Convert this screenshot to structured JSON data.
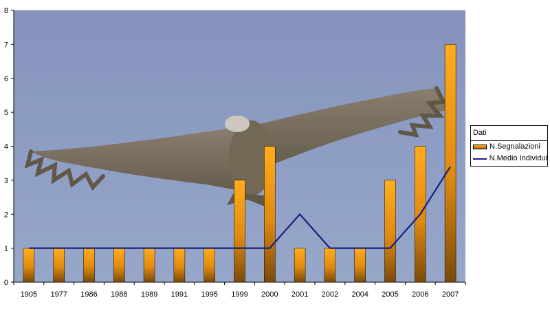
{
  "chart_data": {
    "type": "bar",
    "title": "",
    "xlabel": "",
    "ylabel": "",
    "ylim": [
      0,
      8
    ],
    "yticks": [
      "0",
      "1",
      "2",
      "3",
      "4",
      "5",
      "6",
      "7",
      "8"
    ],
    "categories": [
      "1905",
      "1977",
      "1986",
      "1988",
      "1989",
      "1991",
      "1995",
      "1999",
      "2000",
      "2001",
      "2002",
      "2004",
      "2005",
      "2006",
      "2007"
    ],
    "series": [
      {
        "name": "N.Segnalazioni",
        "type": "bar",
        "color": "#f59a12",
        "values": [
          1,
          1,
          1,
          1,
          1,
          1,
          1,
          3,
          4,
          1,
          1,
          1,
          3,
          4,
          7
        ]
      },
      {
        "name": "N.Medio Individui",
        "type": "line",
        "color": "#1a1f7a",
        "values": [
          1,
          1,
          1,
          1,
          1,
          1,
          1,
          1,
          1,
          2,
          1,
          1,
          1,
          2,
          3.4
        ]
      }
    ],
    "legend": {
      "title": "Dati",
      "position": "right"
    },
    "grid": false,
    "background": "photo of a soaring vulture against a blue sky"
  }
}
